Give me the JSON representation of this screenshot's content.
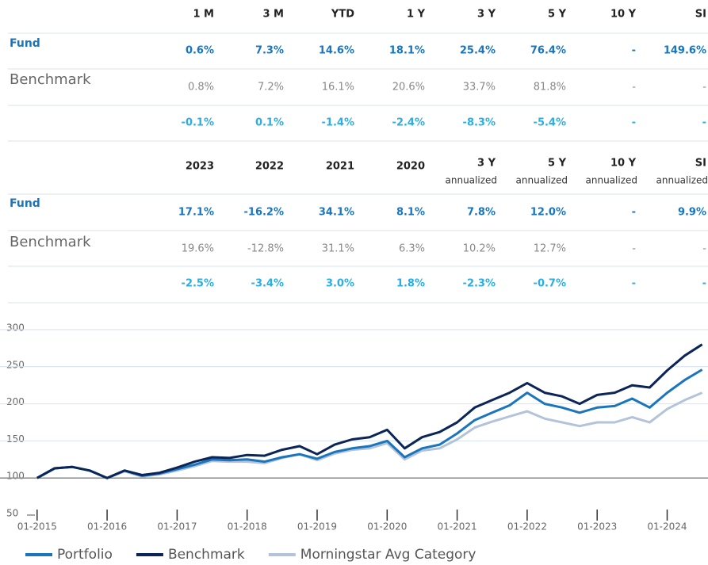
{
  "tables": [
    {
      "columns": [
        {
          "label": "1 M"
        },
        {
          "label": "3 M"
        },
        {
          "label": "YTD"
        },
        {
          "label": "1 Y"
        },
        {
          "label": "3 Y"
        },
        {
          "label": "5 Y"
        },
        {
          "label": "10 Y"
        },
        {
          "label": "SI"
        }
      ],
      "rows": [
        {
          "label": "Fund",
          "values": [
            "0.6%",
            "7.3%",
            "14.6%",
            "18.1%",
            "25.4%",
            "76.4%",
            "-",
            "149.6%"
          ]
        },
        {
          "label": "Benchmark",
          "values": [
            "0.8%",
            "7.2%",
            "16.1%",
            "20.6%",
            "33.7%",
            "81.8%",
            "-",
            "-"
          ]
        },
        {
          "values": [
            "-0.1%",
            "0.1%",
            "-1.4%",
            "-2.4%",
            "-8.3%",
            "-5.4%",
            "-",
            "-"
          ]
        }
      ]
    },
    {
      "columns": [
        {
          "label": "2023"
        },
        {
          "label": "2022"
        },
        {
          "label": "2021"
        },
        {
          "label": "2020"
        },
        {
          "label": "3 Y",
          "sub": "annualized"
        },
        {
          "label": "5 Y",
          "sub": "annualized"
        },
        {
          "label": "10 Y",
          "sub": "annualized"
        },
        {
          "label": "SI",
          "sub": "annualized"
        }
      ],
      "rows": [
        {
          "label": "Fund",
          "values": [
            "17.1%",
            "-16.2%",
            "34.1%",
            "8.1%",
            "7.8%",
            "12.0%",
            "-",
            "9.9%"
          ]
        },
        {
          "label": "Benchmark",
          "values": [
            "19.6%",
            "-12.8%",
            "31.1%",
            "6.3%",
            "10.2%",
            "12.7%",
            "-",
            "-"
          ]
        },
        {
          "values": [
            "-2.5%",
            "-3.4%",
            "3.0%",
            "1.8%",
            "-2.3%",
            "-0.7%",
            "-",
            "-"
          ]
        }
      ]
    }
  ],
  "chart_data": {
    "type": "line",
    "x": [
      "01-2015",
      "04-2015",
      "07-2015",
      "10-2015",
      "01-2016",
      "04-2016",
      "07-2016",
      "10-2016",
      "01-2017",
      "04-2017",
      "07-2017",
      "10-2017",
      "01-2018",
      "04-2018",
      "07-2018",
      "10-2018",
      "01-2019",
      "04-2019",
      "07-2019",
      "10-2019",
      "01-2020",
      "04-2020",
      "07-2020",
      "10-2020",
      "01-2021",
      "04-2021",
      "07-2021",
      "10-2021",
      "01-2022",
      "04-2022",
      "07-2022",
      "10-2022",
      "01-2023",
      "04-2023",
      "07-2023",
      "10-2023",
      "01-2024",
      "04-2024",
      "07-2024"
    ],
    "series": [
      {
        "name": "Portfolio",
        "color": "#1a75bc",
        "values": [
          100,
          113,
          115,
          110,
          100,
          110,
          103,
          106,
          112,
          118,
          125,
          124,
          125,
          122,
          128,
          132,
          126,
          135,
          140,
          143,
          150,
          128,
          140,
          145,
          160,
          178,
          188,
          198,
          215,
          200,
          195,
          188,
          195,
          197,
          207,
          195,
          215,
          232,
          246
        ]
      },
      {
        "name": "Benchmark",
        "color": "#0b2559",
        "values": [
          100,
          113,
          115,
          110,
          100,
          110,
          104,
          107,
          114,
          122,
          128,
          127,
          131,
          130,
          138,
          143,
          132,
          145,
          152,
          155,
          165,
          140,
          155,
          162,
          175,
          195,
          205,
          215,
          228,
          215,
          210,
          200,
          212,
          215,
          225,
          222,
          245,
          265,
          280
        ]
      },
      {
        "name": "Morningstar Avg Category",
        "color": "#b3c3da",
        "values": [
          100,
          113,
          115,
          110,
          100,
          109,
          102,
          105,
          110,
          116,
          123,
          122,
          122,
          120,
          127,
          132,
          124,
          133,
          138,
          140,
          147,
          125,
          137,
          140,
          152,
          168,
          176,
          183,
          190,
          180,
          175,
          170,
          175,
          175,
          182,
          175,
          193,
          205,
          215
        ]
      }
    ],
    "xlim": [
      "08-2014",
      "08-2024"
    ],
    "xticks": [
      "01-2015",
      "01-2016",
      "01-2017",
      "01-2018",
      "01-2019",
      "01-2020",
      "01-2021",
      "01-2022",
      "01-2023",
      "01-2024"
    ],
    "ylim": [
      50,
      300
    ],
    "yticks": [
      50,
      100,
      150,
      200,
      250,
      300
    ],
    "reference_line": 100,
    "grid": true,
    "legend": "bottom"
  }
}
